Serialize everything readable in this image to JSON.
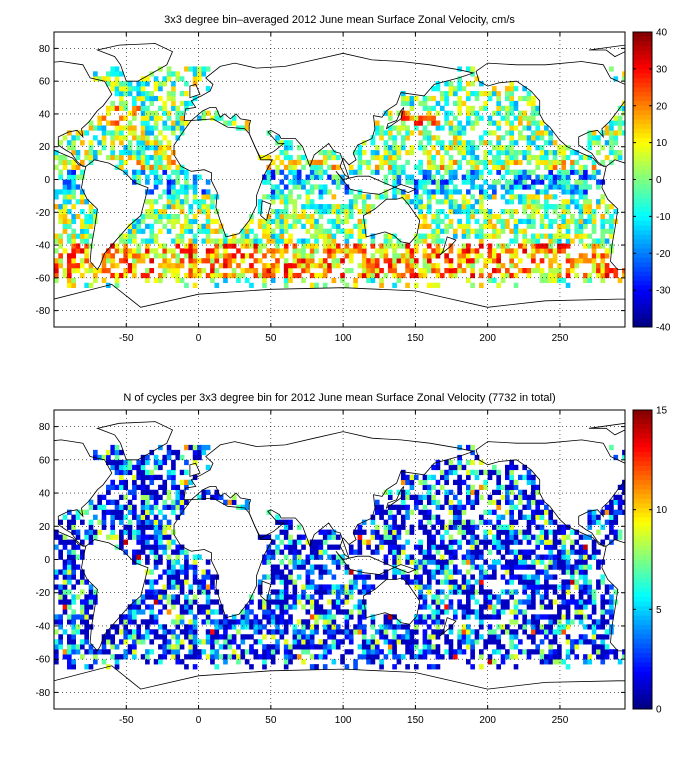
{
  "chart_data": [
    {
      "type": "heatmap",
      "title": "3x3 degree bin–averaged 2012 June mean Surface Zonal Velocity, cm/s",
      "xlim": [
        -100,
        295
      ],
      "ylim": [
        -90,
        90
      ],
      "x_ticks": [
        "-50",
        "0",
        "50",
        "100",
        "150",
        "200",
        "250"
      ],
      "y_ticks": [
        "80",
        "60",
        "40",
        "20",
        "0",
        "-20",
        "-40",
        "-60",
        "-80"
      ],
      "grid": true,
      "colorbar": {
        "min": -40,
        "max": 40,
        "ticks": [
          "40",
          "30",
          "20",
          "10",
          "0",
          "-10",
          "-20",
          "-30",
          "-40"
        ],
        "colormap": "jet"
      }
    },
    {
      "type": "heatmap",
      "title": "N of cycles per 3x3 degree bin for 2012 June mean Surface Zonal Velocity (7732 in total)",
      "xlim": [
        -100,
        295
      ],
      "ylim": [
        -90,
        90
      ],
      "x_ticks": [
        "-50",
        "0",
        "50",
        "100",
        "150",
        "200",
        "250"
      ],
      "y_ticks": [
        "80",
        "60",
        "40",
        "20",
        "0",
        "-20",
        "-40",
        "-60",
        "-80"
      ],
      "grid": true,
      "colorbar": {
        "min": 0,
        "max": 15,
        "ticks": [
          "15",
          "10",
          "5",
          "0"
        ],
        "colormap": "jet"
      }
    }
  ]
}
